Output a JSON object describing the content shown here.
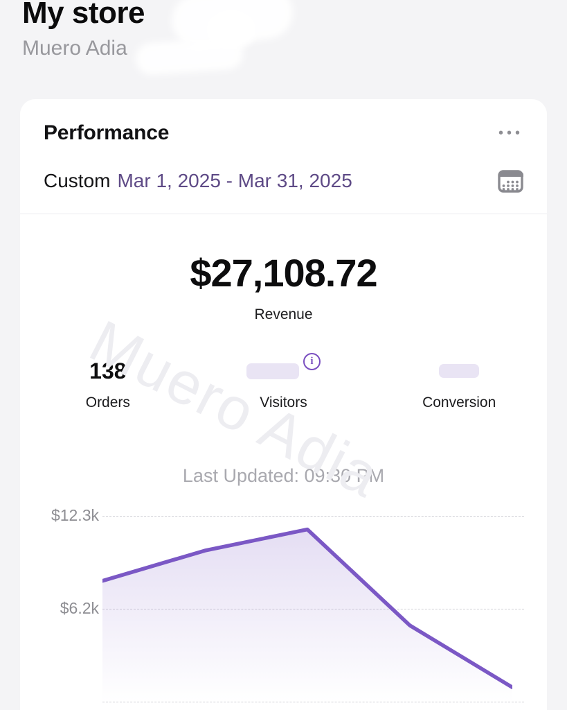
{
  "header": {
    "title": "My store",
    "subtitle": "Muero Adia"
  },
  "card": {
    "title": "Performance",
    "date_filter": {
      "prefix": "Custom",
      "range": "Mar 1, 2025 - Mar 31, 2025"
    },
    "revenue": {
      "value": "$27,108.72",
      "label": "Revenue"
    },
    "metrics": [
      {
        "value": "138",
        "label": "Orders",
        "redacted": false
      },
      {
        "value": "",
        "label": "Visitors",
        "redacted": true,
        "has_info_icon": true
      },
      {
        "value": "",
        "label": "Conversion",
        "redacted": true
      }
    ],
    "last_updated": "Last Updated: 09:30 PM",
    "watermark": "Muero Adia"
  },
  "icons": {
    "more_options": "•••",
    "info": "i",
    "calendar": "calendar-grid"
  },
  "colors": {
    "accent_purple": "#7b58c5",
    "date_text_purple": "#5e4a86",
    "info_icon_purple": "#7a4fc0",
    "redaction_pill": "#e9e4f4",
    "page_background": "#f4f4f6",
    "card_background": "#ffffff",
    "muted_text": "#8e8e93"
  },
  "chart_data": {
    "type": "area",
    "series_label": "Revenue",
    "values": [
      8000,
      10000,
      11400,
      5050,
      950
    ],
    "points_visible": 5,
    "yticks": [
      {
        "label": "$12.3k",
        "value": 12300
      },
      {
        "label": "$6.2k",
        "value": 6200
      },
      {
        "label": "",
        "value": 0
      }
    ],
    "ylim": [
      0,
      13400
    ],
    "grid": true,
    "legend": false,
    "line_color": "#7b58c5",
    "fill": "purple-gradient-fade"
  }
}
